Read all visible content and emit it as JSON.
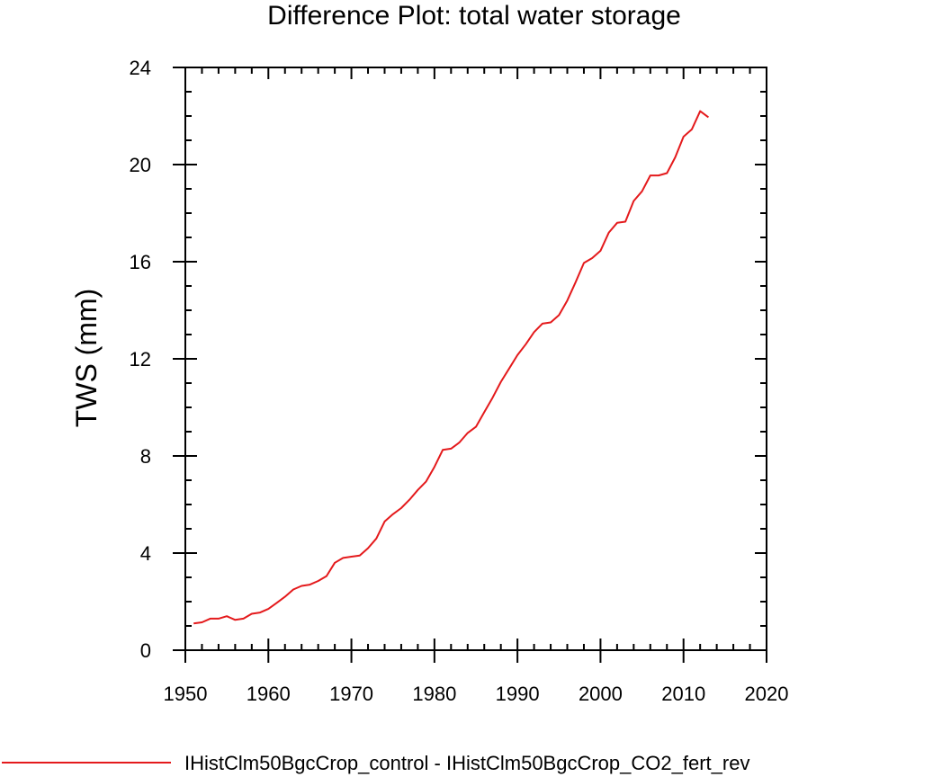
{
  "chart_data": {
    "type": "line",
    "title": "Difference Plot: total water storage",
    "xlabel": "",
    "ylabel": "TWS  (mm)",
    "xlim": [
      1950,
      2020
    ],
    "ylim": [
      0,
      24
    ],
    "x_ticks": [
      1950,
      1960,
      1970,
      1980,
      1990,
      2000,
      2010,
      2020
    ],
    "y_ticks": [
      0,
      4,
      8,
      12,
      16,
      20,
      24
    ],
    "grid": false,
    "legend": "bottom",
    "series": [
      {
        "name": "IHistClm50BgcCrop_control - IHistClm50BgcCrop_CO2_fert_rev",
        "color": "#e41a1c",
        "x": [
          1951,
          1952,
          1953,
          1954,
          1955,
          1956,
          1957,
          1958,
          1959,
          1960,
          1961,
          1962,
          1963,
          1964,
          1965,
          1966,
          1967,
          1968,
          1969,
          1970,
          1971,
          1972,
          1973,
          1974,
          1975,
          1976,
          1977,
          1978,
          1979,
          1980,
          1981,
          1982,
          1983,
          1984,
          1985,
          1986,
          1987,
          1988,
          1989,
          1990,
          1991,
          1992,
          1993,
          1994,
          1995,
          1996,
          1997,
          1998,
          1999,
          2000,
          2001,
          2002,
          2003,
          2004,
          2005,
          2006,
          2007,
          2008,
          2009,
          2010,
          2011,
          2012,
          2013
        ],
        "y": [
          1.1,
          1.15,
          1.3,
          1.3,
          1.4,
          1.25,
          1.3,
          1.5,
          1.55,
          1.7,
          1.95,
          2.2,
          2.5,
          2.65,
          2.7,
          2.85,
          3.05,
          3.6,
          3.8,
          3.85,
          3.9,
          4.2,
          4.6,
          5.3,
          5.6,
          5.85,
          6.2,
          6.6,
          6.95,
          7.55,
          8.25,
          8.3,
          8.55,
          8.95,
          9.2,
          9.8,
          10.4,
          11.05,
          11.6,
          12.15,
          12.6,
          13.1,
          13.45,
          13.5,
          13.8,
          14.4,
          15.15,
          15.95,
          16.15,
          16.45,
          17.2,
          17.6,
          17.65,
          18.5,
          18.9,
          19.55,
          19.55,
          19.65,
          20.3,
          21.15,
          21.45,
          22.2,
          21.95
        ]
      }
    ]
  }
}
